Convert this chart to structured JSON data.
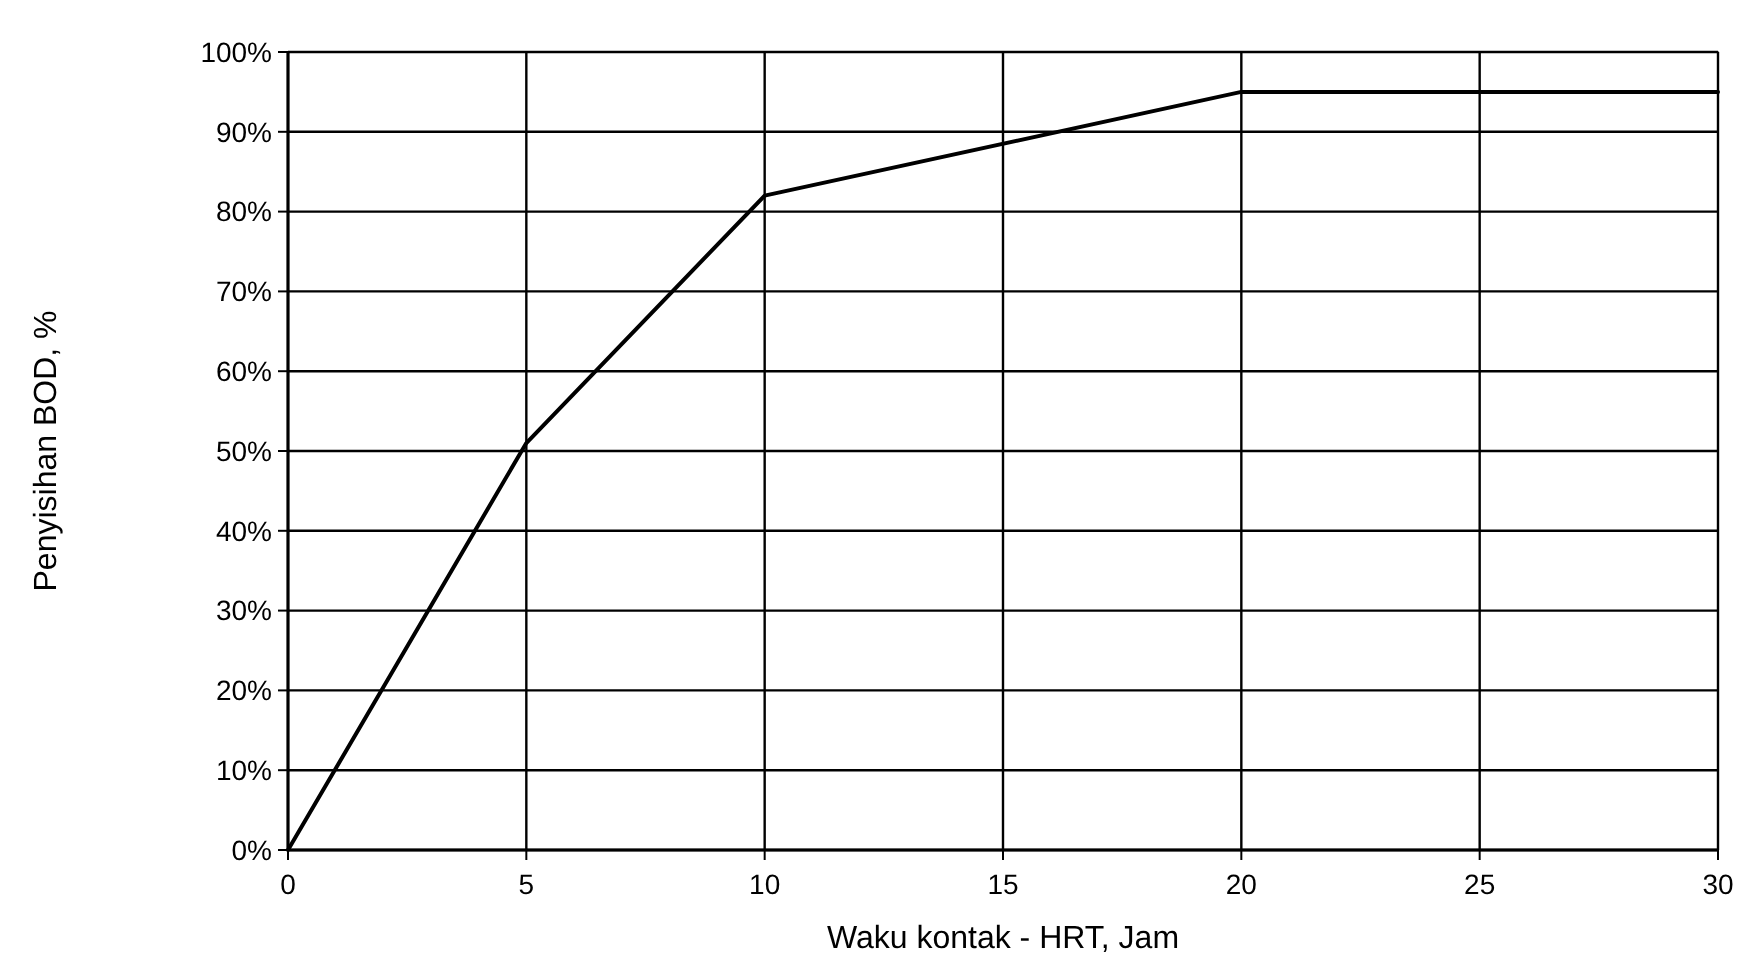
{
  "chart_data": {
    "type": "line",
    "xlabel": "Waku kontak - HRT, Jam",
    "ylabel": "Penyisihan BOD, %",
    "x": [
      0,
      5,
      10,
      20,
      30
    ],
    "series": [
      {
        "color": "#000000",
        "values": [
          0,
          51,
          82,
          95,
          95
        ]
      }
    ],
    "xlim": [
      0,
      30
    ],
    "xticks": [
      0,
      5,
      10,
      15,
      20,
      25,
      30
    ],
    "ylim": [
      0,
      100
    ],
    "yticks": [
      {
        "value": 0,
        "label": "0%"
      },
      {
        "value": 10,
        "label": "10%"
      },
      {
        "value": 20,
        "label": "20%"
      },
      {
        "value": 30,
        "label": "30%"
      },
      {
        "value": 40,
        "label": "40%"
      },
      {
        "value": 50,
        "label": "50%"
      },
      {
        "value": 60,
        "label": "60%"
      },
      {
        "value": 70,
        "label": "70%"
      },
      {
        "value": 80,
        "label": "80%"
      },
      {
        "value": 90,
        "label": "90%"
      },
      {
        "value": 100,
        "label": "100%"
      }
    ],
    "grid": true,
    "line_style": "solid",
    "marker": "none"
  }
}
